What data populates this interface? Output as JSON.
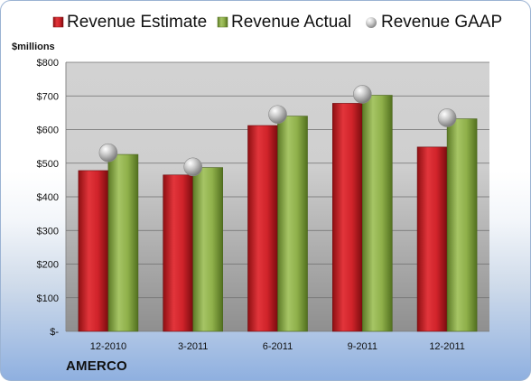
{
  "chart_data": {
    "type": "bar",
    "unit_label": "$millions",
    "categories": [
      "12-2010",
      "3-2011",
      "6-2011",
      "9-2011",
      "12-2011"
    ],
    "series": [
      {
        "name": "Revenue Estimate",
        "kind": "bar",
        "values": [
          478,
          465,
          612,
          678,
          548
        ],
        "color": "#d0232a"
      },
      {
        "name": "Revenue Actual",
        "kind": "bar",
        "values": [
          526,
          487,
          640,
          702,
          632
        ],
        "color": "#8fb04a"
      },
      {
        "name": "Revenue GAAP",
        "kind": "marker",
        "values": [
          531,
          489,
          645,
          705,
          635
        ],
        "color": "#b8b8b8"
      }
    ],
    "ylim": [
      0,
      800
    ],
    "yticks": [
      0,
      100,
      200,
      300,
      400,
      500,
      600,
      700,
      800
    ],
    "ytick_labels": [
      "$-",
      "$100",
      "$200",
      "$300",
      "$400",
      "$500",
      "$600",
      "$700",
      "$800"
    ],
    "grid": true,
    "legend_position": "top",
    "company": "AMERCO"
  }
}
